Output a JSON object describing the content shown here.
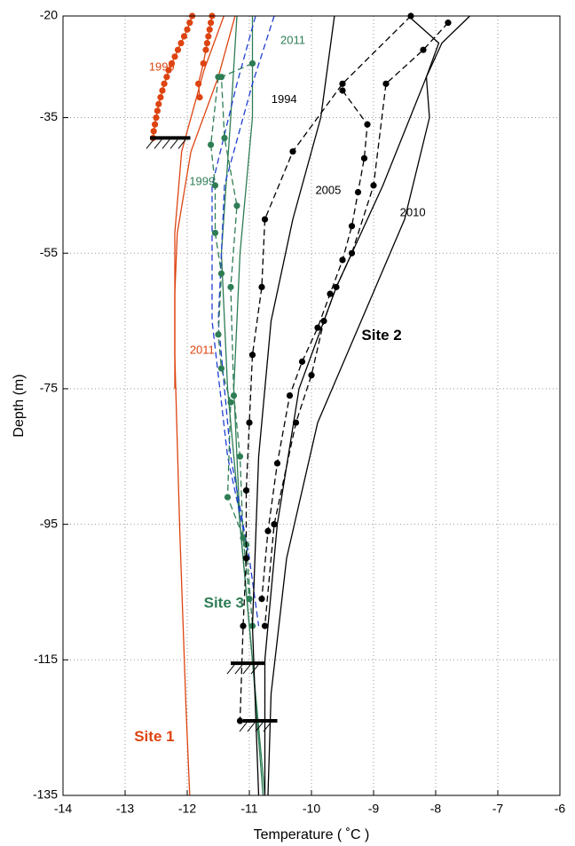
{
  "chart_data": {
    "type": "line",
    "x_label": "Temperature ( ˚C )",
    "y_label": "Depth (m)",
    "xlim": [
      -14,
      -6
    ],
    "ylim": [
      -135,
      -20
    ],
    "xticks": [
      -14,
      -13,
      -12,
      -11,
      -10,
      -9,
      -8,
      -7,
      -6
    ],
    "yticks": [
      -20,
      -35,
      -55,
      -75,
      -95,
      -115,
      -135
    ],
    "grid": true,
    "series": [
      {
        "color": "#dd4411",
        "line": "solid",
        "marker": false,
        "x": [
          -11.41,
          -11.73,
          -12.09,
          -12.2,
          -12.2,
          -12.12,
          -12.02,
          -11.96
        ],
        "y": [
          -20,
          -28,
          -40,
          -52,
          -70,
          -96,
          -122,
          -135
        ]
      },
      {
        "color": "#dd4411",
        "line": "solid",
        "marker": false,
        "x": [
          -11.23,
          -11.5,
          -11.94,
          -12.16,
          -12.2,
          -12.2
        ],
        "y": [
          -20,
          -29,
          -40,
          -52,
          -61,
          -75
        ]
      },
      {
        "color": "#dd4411",
        "line": "solid",
        "marker": true,
        "x": [
          -11.92,
          -11.96,
          -12.0,
          -12.05,
          -12.1,
          -12.15,
          -12.2,
          -12.25,
          -12.3,
          -12.33,
          -12.37,
          -12.4,
          -12.43,
          -12.46,
          -12.48,
          -12.5,
          -12.52,
          -12.54,
          -12.55
        ],
        "y": [
          -20,
          -21,
          -22,
          -23,
          -24,
          -25,
          -26,
          -27,
          -28,
          -29,
          -30,
          -31,
          -32,
          -33,
          -34,
          -35,
          -36,
          -37,
          -38
        ]
      },
      {
        "color": "#dd4411",
        "line": "solid",
        "marker": true,
        "x": [
          -11.6,
          -11.62,
          -11.64,
          -11.66,
          -11.68,
          -11.7,
          -11.74,
          -11.82,
          -11.8
        ],
        "y": [
          -20,
          -21,
          -22,
          -23,
          -24,
          -25,
          -27,
          -30,
          -32
        ]
      },
      {
        "color": "#2e7d55",
        "line": "solid",
        "marker": false,
        "x": [
          -11.2,
          -11.3,
          -11.45,
          -11.35,
          -11.15,
          -10.95,
          -10.78
        ],
        "y": [
          -20,
          -35,
          -55,
          -75,
          -95,
          -115,
          -135
        ]
      },
      {
        "color": "#2e7d55",
        "line": "solid",
        "marker": false,
        "x": [
          -10.95,
          -10.95,
          -11.15,
          -11.25,
          -11.15,
          -10.95,
          -10.75
        ],
        "y": [
          -20,
          -35,
          -55,
          -75,
          -95,
          -115,
          -135
        ]
      },
      {
        "color": "#1f3fd0",
        "line": "dashed",
        "marker": false,
        "x": [
          -10.6,
          -10.95,
          -11.4,
          -11.5,
          -11.3,
          -11.0,
          -10.85
        ],
        "y": [
          -20,
          -30,
          -45,
          -65,
          -85,
          -100,
          -110
        ]
      },
      {
        "color": "#1f3fd0",
        "line": "dashed",
        "marker": false,
        "x": [
          -10.9,
          -11.2,
          -11.6,
          -11.6,
          -11.35,
          -11.0
        ],
        "y": [
          -20,
          -30,
          -45,
          -65,
          -85,
          -100
        ]
      },
      {
        "color": "#2e7d55",
        "line": "dashed",
        "marker": true,
        "x": [
          -11.5,
          -11.62,
          -11.55,
          -11.55,
          -11.45,
          -11.5,
          -11.45,
          -11.3,
          -11.35,
          -11.05,
          -10.95
        ],
        "y": [
          -29,
          -39,
          -45,
          -52,
          -58,
          -67,
          -72,
          -77,
          -91,
          -98,
          -110
        ]
      },
      {
        "color": "#2e7d55",
        "line": "dashed",
        "marker": true,
        "x": [
          -10.95,
          -11.45,
          -11.4,
          -11.2,
          -11.3,
          -11.25,
          -11.15,
          -11.1,
          -11.0
        ],
        "y": [
          -27,
          -29,
          -38,
          -48,
          -60,
          -76,
          -85,
          -97,
          -106
        ]
      },
      {
        "color": "#000000",
        "line": "solid",
        "marker": false,
        "x": [
          -9.63,
          -9.85,
          -10.3,
          -10.65,
          -10.85,
          -10.95,
          -10.85
        ],
        "y": [
          -20,
          -35,
          -50,
          -65,
          -85,
          -110,
          -135
        ]
      },
      {
        "color": "#000000",
        "line": "solid",
        "marker": false,
        "x": [
          -8.44,
          -7.95,
          -8.15,
          -8.85,
          -9.6,
          -10.2,
          -10.55,
          -10.75,
          -10.75
        ],
        "y": [
          -20,
          -24,
          -29,
          -45,
          -60,
          -75,
          -95,
          -115,
          -135
        ]
      },
      {
        "color": "#000000",
        "line": "solid",
        "marker": false,
        "x": [
          -7.45,
          -7.9,
          -8.15,
          -8.1,
          -8.5,
          -9.2,
          -9.9,
          -10.4,
          -10.65,
          -10.7
        ],
        "y": [
          -20,
          -24,
          -29,
          -35,
          -50,
          -65,
          -80,
          -100,
          -120,
          -135
        ]
      },
      {
        "color": "#000000",
        "line": "dashed",
        "marker": true,
        "x": [
          -8.4,
          -9.5,
          -10.3,
          -10.75,
          -10.8,
          -10.95,
          -11.0,
          -11.05,
          -11.05,
          -11.1,
          -11.15
        ],
        "y": [
          -20,
          -30,
          -40,
          -50,
          -60,
          -70,
          -80,
          -90,
          -100,
          -110,
          -124
        ]
      },
      {
        "color": "#000000",
        "line": "dashed",
        "marker": true,
        "x": [
          -9.5,
          -9.1,
          -9.15,
          -9.25,
          -9.35,
          -9.5,
          -9.7,
          -9.9,
          -10.15,
          -10.35,
          -10.55,
          -10.7,
          -10.8
        ],
        "y": [
          -31,
          -36,
          -41,
          -46,
          -51,
          -56,
          -61,
          -66,
          -71,
          -76,
          -86,
          -96,
          -106
        ]
      },
      {
        "color": "#000000",
        "line": "dashed",
        "marker": true,
        "x": [
          -7.8,
          -8.2,
          -8.8,
          -9.0,
          -9.35,
          -9.6,
          -9.8,
          -10.0,
          -10.25,
          -10.6,
          -10.75
        ],
        "y": [
          -21,
          -25,
          -30,
          -45,
          -55,
          -60,
          -65,
          -73,
          -80,
          -95,
          -110
        ]
      }
    ],
    "boreholes": [
      {
        "depth": -38,
        "tmin": -12.6,
        "tmax": -11.95
      },
      {
        "depth": -115.5,
        "tmin": -11.3,
        "tmax": -10.75
      },
      {
        "depth": -124,
        "tmin": -11.1,
        "tmax": -10.55
      }
    ],
    "annotations": [
      {
        "text": "1999",
        "x": -12.41,
        "y": -27.6,
        "color": "#dd4411",
        "bold": false
      },
      {
        "text": "2011",
        "x": -11.76,
        "y": -69.4,
        "color": "#dd4411",
        "bold": false
      },
      {
        "text": "1999",
        "x": -11.76,
        "y": -44.5,
        "color": "#2e7d55",
        "bold": false
      },
      {
        "text": "2011",
        "x": -10.3,
        "y": -23.7,
        "color": "#2e7d55",
        "bold": false
      },
      {
        "text": "1994",
        "x": -10.44,
        "y": -32.4,
        "color": "#000000",
        "bold": false
      },
      {
        "text": "2005",
        "x": -9.73,
        "y": -45.8,
        "color": "#000000",
        "bold": false
      },
      {
        "text": "2010",
        "x": -8.37,
        "y": -49.1,
        "color": "#000000",
        "bold": false
      },
      {
        "text": "Site 2",
        "x": -8.87,
        "y": -67.2,
        "color": "#000000",
        "bold": true
      },
      {
        "text": "Site 3",
        "x": -11.41,
        "y": -106.7,
        "color": "#2e7d55",
        "bold": true
      },
      {
        "text": "Site 1",
        "x": -12.53,
        "y": -126.4,
        "color": "#dd4411",
        "bold": true
      }
    ]
  }
}
